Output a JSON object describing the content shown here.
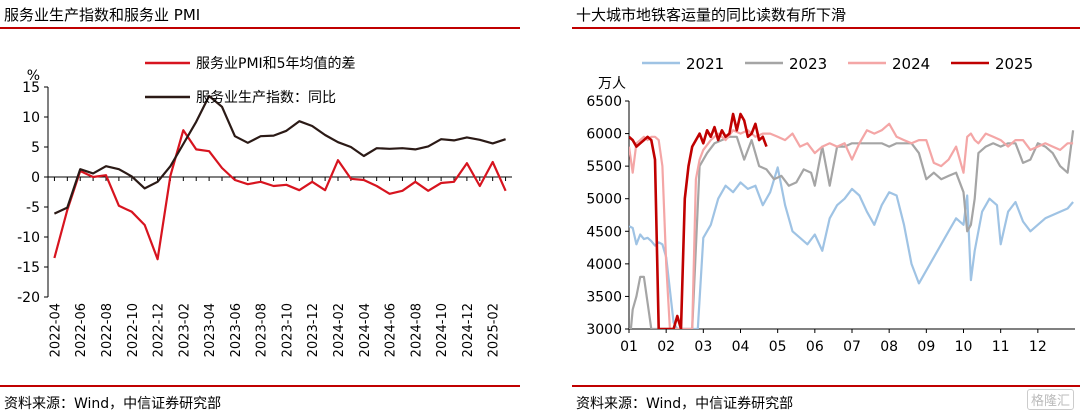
{
  "left": {
    "title": "服务业生产指数和服务业 PMI",
    "source": "资料来源：Wind，中信证券研究部",
    "chart_data": {
      "type": "line",
      "title": "服务业生产指数和服务业 PMI",
      "ylabel": "%",
      "ylim": [
        -20,
        15
      ],
      "yticks": [
        15,
        10,
        5,
        0,
        -5,
        -10,
        -15,
        -20
      ],
      "legend_position": "top-center",
      "x_tick_labels": [
        "2022-04",
        "2022-06",
        "2022-08",
        "2022-10",
        "2022-12",
        "2023-02",
        "2023-04",
        "2023-06",
        "2023-08",
        "2023-10",
        "2023-12",
        "2024-02",
        "2024-04",
        "2024-06",
        "2024-08",
        "2024-10",
        "2024-12",
        "2025-02"
      ],
      "x": [
        "2022-04",
        "2022-05",
        "2022-06",
        "2022-07",
        "2022-08",
        "2022-09",
        "2022-10",
        "2022-11",
        "2022-12",
        "2023-01",
        "2023-02",
        "2023-03",
        "2023-04",
        "2023-05",
        "2023-06",
        "2023-07",
        "2023-08",
        "2023-09",
        "2023-10",
        "2023-11",
        "2023-12",
        "2024-01",
        "2024-02",
        "2024-03",
        "2024-04",
        "2024-05",
        "2024-06",
        "2024-07",
        "2024-08",
        "2024-09",
        "2024-10",
        "2024-11",
        "2024-12",
        "2025-01",
        "2025-02",
        "2025-03"
      ],
      "series": [
        {
          "name": "服务业PMI和5年均值的差",
          "color": "#d7141f",
          "values": [
            -13.5,
            -5.5,
            1.0,
            0.0,
            0.3,
            -4.8,
            -5.8,
            -8.0,
            -13.7,
            0.2,
            7.8,
            4.6,
            4.3,
            1.5,
            -0.5,
            -1.2,
            -0.8,
            -1.5,
            -1.3,
            -2.2,
            -0.8,
            -2.2,
            2.8,
            -0.3,
            -0.5,
            -1.5,
            -2.8,
            -2.3,
            -0.8,
            -2.3,
            -1.0,
            -0.8,
            2.3,
            -1.5,
            2.5,
            -2.3
          ]
        },
        {
          "name": "服务业生产指数：同比",
          "color": "#2b1a16",
          "values": [
            -6.1,
            -5.1,
            1.3,
            0.6,
            1.8,
            1.3,
            0.1,
            -1.9,
            -0.8,
            1.8,
            5.5,
            9.2,
            13.5,
            11.7,
            6.8,
            5.7,
            6.8,
            6.9,
            7.7,
            9.3,
            8.5,
            7.0,
            5.8,
            5.0,
            3.5,
            4.8,
            4.7,
            4.8,
            4.6,
            5.1,
            6.3,
            6.1,
            6.6,
            6.2,
            5.6,
            6.3
          ]
        }
      ]
    }
  },
  "right": {
    "title": "十大城市地铁客运量的同比读数有所下滑",
    "source": "资料来源：Wind，中信证券研究部",
    "watermark": "格隆汇",
    "chart_data": {
      "type": "line",
      "title": "十大城市地铁客运量的同比读数有所下滑",
      "ylabel": "万人",
      "ylim": [
        3000,
        6500
      ],
      "yticks": [
        6500,
        6000,
        5500,
        5000,
        4500,
        4000,
        3500,
        3000
      ],
      "xlim": [
        1,
        13
      ],
      "x_tick_labels": [
        "01",
        "02",
        "03",
        "04",
        "05",
        "06",
        "07",
        "08",
        "09",
        "10",
        "11",
        "12"
      ],
      "legend_position": "top",
      "series": [
        {
          "name": "2021",
          "color": "#9fc3e4",
          "x": [
            1.0,
            1.1,
            1.2,
            1.3,
            1.4,
            1.5,
            1.6,
            1.7,
            1.8,
            1.9,
            2.0,
            2.1,
            2.2,
            2.3,
            2.5,
            2.7,
            2.85,
            3.0,
            3.2,
            3.4,
            3.6,
            3.8,
            4.0,
            4.2,
            4.4,
            4.6,
            4.8,
            5.0,
            5.2,
            5.4,
            5.6,
            5.8,
            6.0,
            6.2,
            6.4,
            6.6,
            6.8,
            7.0,
            7.2,
            7.4,
            7.6,
            7.8,
            8.0,
            8.2,
            8.4,
            8.6,
            8.8,
            9.0,
            9.2,
            9.4,
            9.6,
            9.8,
            10.0,
            10.1,
            10.2,
            10.3,
            10.5,
            10.7,
            10.9,
            11.0,
            11.2,
            11.4,
            11.6,
            11.8,
            12.0,
            12.2,
            12.4,
            12.6,
            12.8,
            12.95
          ],
          "y": [
            4580,
            4550,
            4300,
            4450,
            4380,
            4400,
            4350,
            4280,
            4330,
            4300,
            4100,
            3600,
            3100,
            3000,
            3000,
            3000,
            3000,
            4400,
            4600,
            5000,
            5200,
            5100,
            5250,
            5150,
            5200,
            4900,
            5100,
            5480,
            4900,
            4500,
            4400,
            4300,
            4450,
            4200,
            4700,
            4900,
            5000,
            5150,
            5050,
            4800,
            4600,
            4900,
            5100,
            5050,
            4600,
            4000,
            3700,
            3900,
            4100,
            4300,
            4500,
            4700,
            4600,
            5050,
            3750,
            4200,
            4800,
            5000,
            4900,
            4300,
            4800,
            4950,
            4650,
            4500,
            4600,
            4700,
            4750,
            4800,
            4850,
            4950
          ]
        },
        {
          "name": "2023",
          "color": "#a5a5a5",
          "x": [
            1.0,
            1.05,
            1.1,
            1.2,
            1.3,
            1.4,
            1.5,
            1.6,
            1.7,
            1.8,
            1.9,
            2.0,
            2.1,
            2.2,
            2.3,
            2.5,
            2.7,
            2.9,
            3.1,
            3.3,
            3.5,
            3.7,
            3.9,
            4.1,
            4.3,
            4.5,
            4.7,
            4.9,
            5.1,
            5.3,
            5.5,
            5.7,
            5.9,
            6.0,
            6.2,
            6.4,
            6.6,
            6.8,
            7.0,
            7.2,
            7.4,
            7.6,
            7.8,
            8.0,
            8.2,
            8.4,
            8.6,
            8.8,
            9.0,
            9.2,
            9.4,
            9.6,
            9.8,
            10.0,
            10.1,
            10.2,
            10.3,
            10.4,
            10.6,
            10.8,
            11.0,
            11.2,
            11.4,
            11.6,
            11.8,
            12.0,
            12.2,
            12.4,
            12.6,
            12.8,
            12.95
          ],
          "y": [
            3000,
            3000,
            3300,
            3500,
            3800,
            3800,
            3400,
            3000,
            3000,
            3000,
            3000,
            3000,
            3000,
            3000,
            3000,
            3000,
            3000,
            5500,
            5700,
            5850,
            5900,
            5950,
            5950,
            5600,
            5900,
            5500,
            5450,
            5300,
            5350,
            5200,
            5250,
            5450,
            5400,
            5200,
            5800,
            5200,
            5800,
            5800,
            5850,
            5850,
            5850,
            5850,
            5850,
            5800,
            5850,
            5850,
            5850,
            5700,
            5300,
            5400,
            5300,
            5350,
            5400,
            5100,
            4500,
            4600,
            5000,
            5700,
            5800,
            5850,
            5800,
            5850,
            5850,
            5550,
            5600,
            5850,
            5800,
            5700,
            5500,
            5400,
            6050
          ]
        },
        {
          "name": "2024",
          "color": "#f4a6a6",
          "x": [
            1.0,
            1.1,
            1.2,
            1.3,
            1.4,
            1.5,
            1.6,
            1.7,
            1.8,
            1.9,
            2.0,
            2.1,
            2.2,
            2.3,
            2.4,
            2.5,
            2.6,
            2.7,
            2.8,
            2.9,
            3.0,
            3.2,
            3.4,
            3.6,
            3.8,
            4.0,
            4.2,
            4.4,
            4.6,
            4.8,
            5.0,
            5.2,
            5.4,
            5.6,
            5.8,
            6.0,
            6.2,
            6.4,
            6.6,
            6.8,
            7.0,
            7.2,
            7.4,
            7.6,
            7.8,
            8.0,
            8.2,
            8.4,
            8.6,
            8.8,
            9.0,
            9.2,
            9.4,
            9.6,
            9.8,
            10.0,
            10.1,
            10.2,
            10.3,
            10.4,
            10.6,
            10.8,
            11.0,
            11.2,
            11.4,
            11.6,
            11.8,
            12.0,
            12.2,
            12.4,
            12.6,
            12.8,
            12.95
          ],
          "y": [
            5800,
            5400,
            5850,
            5900,
            5950,
            5900,
            5950,
            5950,
            5900,
            5500,
            4000,
            3000,
            3000,
            3000,
            3000,
            3000,
            3000,
            3000,
            5300,
            5600,
            5750,
            5900,
            6000,
            5900,
            6050,
            6000,
            6050,
            5950,
            6000,
            6000,
            5950,
            5900,
            6000,
            5800,
            5850,
            5700,
            5800,
            5850,
            5800,
            5850,
            5600,
            5850,
            6050,
            6000,
            6050,
            6150,
            5950,
            5900,
            5850,
            5900,
            5900,
            5550,
            5500,
            5600,
            5800,
            5400,
            5950,
            6000,
            5900,
            5850,
            6000,
            5950,
            5900,
            5800,
            5900,
            5900,
            5750,
            5800,
            5850,
            5800,
            5750,
            5850,
            5850
          ]
        },
        {
          "name": "2025",
          "color": "#c00000",
          "x": [
            1.0,
            1.1,
            1.2,
            1.3,
            1.4,
            1.5,
            1.6,
            1.7,
            1.8,
            1.9,
            2.0,
            2.1,
            2.2,
            2.3,
            2.4,
            2.5,
            2.6,
            2.7,
            2.8,
            2.9,
            3.0,
            3.1,
            3.2,
            3.3,
            3.4,
            3.5,
            3.6,
            3.7,
            3.8,
            3.9,
            4.0,
            4.1,
            4.2,
            4.3,
            4.4,
            4.5,
            4.6,
            4.7
          ],
          "y": [
            5950,
            5900,
            5800,
            5850,
            5900,
            5950,
            5900,
            5600,
            3000,
            3000,
            3000,
            3000,
            3000,
            3200,
            3000,
            5000,
            5500,
            5800,
            5900,
            6000,
            5850,
            6050,
            5950,
            6100,
            5900,
            6050,
            5950,
            6000,
            6300,
            6050,
            6300,
            6200,
            5950,
            6000,
            6150,
            5900,
            5950,
            5800
          ]
        }
      ]
    }
  }
}
